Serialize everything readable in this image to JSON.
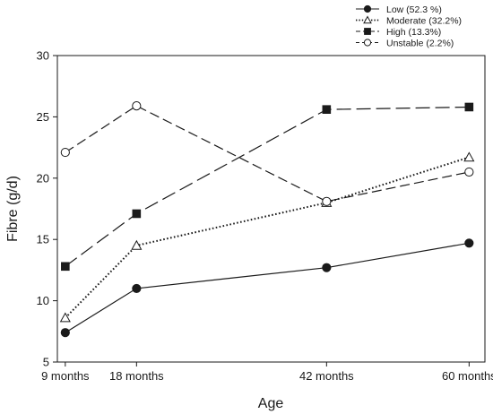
{
  "chart_data": {
    "type": "line",
    "xlabel": "Age",
    "ylabel": "Fibre (g/d)",
    "x": [
      9,
      18,
      42,
      60
    ],
    "x_tick_labels": [
      "9 months",
      "18 months",
      "42 months",
      "60 months"
    ],
    "xlim": [
      8,
      62
    ],
    "ylim": [
      5,
      30
    ],
    "y_ticks": [
      5,
      10,
      15,
      20,
      25,
      30
    ],
    "grid": false,
    "legend_position": "top-right",
    "series": [
      {
        "name": "Low (52.3 %)",
        "values": [
          7.4,
          11.0,
          12.7,
          14.7
        ],
        "marker": "filled-circle",
        "line": "solid"
      },
      {
        "name": "Moderate (32.2%)",
        "values": [
          8.6,
          14.5,
          18.0,
          21.7
        ],
        "marker": "open-triangle",
        "line": "dotted"
      },
      {
        "name": "High (13.3%)",
        "values": [
          12.8,
          17.1,
          25.6,
          25.8
        ],
        "marker": "filled-square",
        "line": "long-dash"
      },
      {
        "name": "Unstable (2.2%)",
        "values": [
          22.1,
          25.9,
          18.1,
          20.5
        ],
        "marker": "open-circle",
        "line": "dash"
      }
    ]
  },
  "colors": {
    "ink": "#1a1a1a",
    "background": "#ffffff"
  }
}
